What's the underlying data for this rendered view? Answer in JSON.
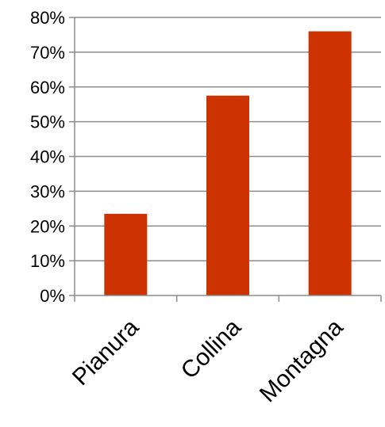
{
  "chart_data": {
    "type": "bar",
    "categories": [
      "Pianura",
      "Collina",
      "Montagna"
    ],
    "values": [
      23.5,
      57.5,
      76
    ],
    "ylim": [
      0,
      80
    ],
    "yticks": [
      "0%",
      "10%",
      "20%",
      "30%",
      "40%",
      "50%",
      "60%",
      "70%",
      "80%"
    ],
    "ytick_values": [
      0,
      10,
      20,
      30,
      40,
      50,
      60,
      70,
      80
    ],
    "grid": true,
    "legend": "none",
    "bar_color": "#cc3300",
    "title": "",
    "xlabel": "",
    "ylabel": ""
  }
}
